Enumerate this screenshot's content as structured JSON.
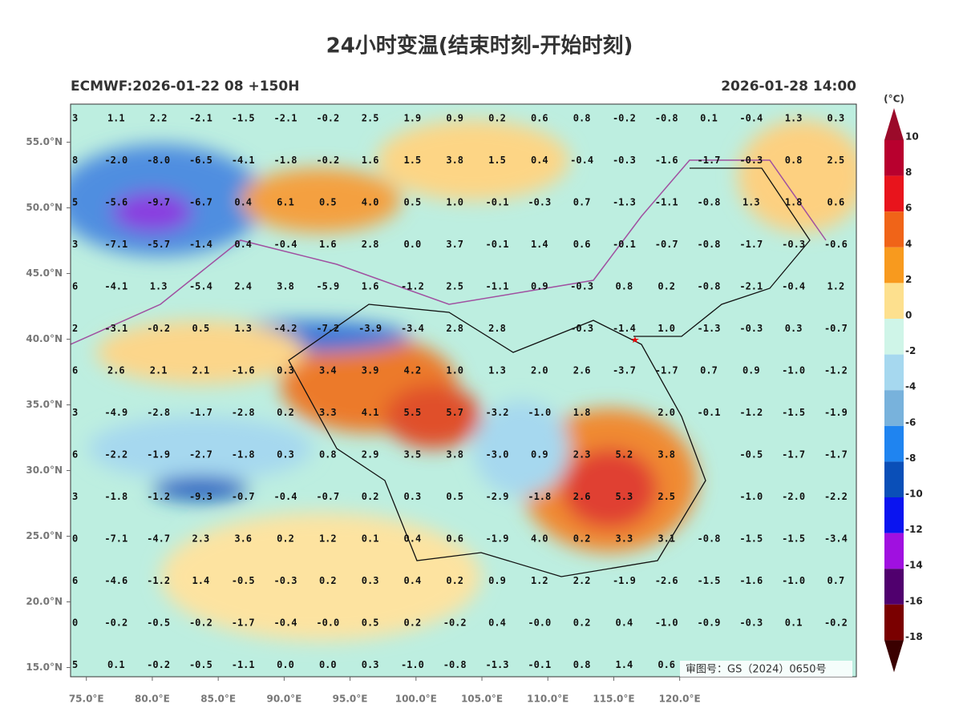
{
  "title": "24小时变温(结束时刻-开始时刻)",
  "subtitle_left": "ECMWF:2026-01-22 08 +150H",
  "subtitle_right": "2026-01-28 14:00",
  "map": {
    "lon_lim": [
      73.8,
      133.4
    ],
    "lat_lim": [
      14.3,
      57.9
    ],
    "lat_ticks": [
      {
        "value": 55,
        "label": "55.0°N"
      },
      {
        "value": 50,
        "label": "50.0°N"
      },
      {
        "value": 45,
        "label": "45.0°N"
      },
      {
        "value": 40,
        "label": "40.0°N"
      },
      {
        "value": 35,
        "label": "35.0°N"
      },
      {
        "value": 30,
        "label": "30.0°N"
      },
      {
        "value": 25,
        "label": "25.0°N"
      },
      {
        "value": 20,
        "label": "20.0°N"
      },
      {
        "value": 15,
        "label": "15.0°N"
      }
    ],
    "lon_ticks": [
      {
        "value": 75,
        "label": "75.0°E"
      },
      {
        "value": 80,
        "label": "80.0°E"
      },
      {
        "value": 85,
        "label": "85.0°E"
      },
      {
        "value": 90,
        "label": "90.0°E"
      },
      {
        "value": 95,
        "label": "95.0°E"
      },
      {
        "value": 100,
        "label": "100.0°E"
      },
      {
        "value": 105,
        "label": "105.0°E"
      },
      {
        "value": 110,
        "label": "110.0°E"
      },
      {
        "value": 115,
        "label": "115.0°E"
      },
      {
        "value": 120,
        "label": "120.0°E"
      }
    ],
    "grid_values": [
      [
        "3",
        "1.1",
        "2.2",
        "-2.1",
        "-1.5",
        "-2.1",
        "-0.2",
        "2.5",
        "1.9",
        "0.9",
        "0.2",
        "0.6",
        "0.8",
        "-0.2",
        "-0.8",
        "0.1",
        "-0.4",
        "1.3",
        "0.3"
      ],
      [
        "8",
        "-2.0",
        "-8.0",
        "-6.5",
        "-4.1",
        "-1.8",
        "-0.2",
        "1.6",
        "1.5",
        "3.8",
        "1.5",
        "0.4",
        "-0.4",
        "-0.3",
        "-1.6",
        "-1.7",
        "-0.3",
        "0.8",
        "2.5"
      ],
      [
        "5",
        "-5.6",
        "-9.7",
        "-6.7",
        "0.4",
        "6.1",
        "0.5",
        "4.0",
        "0.5",
        "1.0",
        "-0.1",
        "-0.3",
        "0.7",
        "-1.3",
        "-1.1",
        "-0.8",
        "1.3",
        "1.8",
        "0.6"
      ],
      [
        "3",
        "-7.1",
        "-5.7",
        "-1.4",
        "0.4",
        "-0.4",
        "1.6",
        "2.8",
        "0.0",
        "3.7",
        "-0.1",
        "1.4",
        "0.6",
        "-0.1",
        "-0.7",
        "-0.8",
        "-1.7",
        "-0.3",
        "-0.6"
      ],
      [
        "6",
        "-4.1",
        "1.3",
        "-5.4",
        "2.4",
        "3.8",
        "-5.9",
        "1.6",
        "-1.2",
        "2.5",
        "-1.1",
        "0.9",
        "-0.3",
        "0.8",
        "0.2",
        "-0.8",
        "-2.1",
        "-0.4",
        "1.2"
      ],
      [
        "2",
        "-3.1",
        "-0.2",
        "0.5",
        "1.3",
        "-4.2",
        "-7.2",
        "-3.9",
        "-3.4",
        "2.8",
        "2.8",
        null,
        "-0.3",
        "-1.4",
        "1.0",
        "-1.3",
        "-0.3",
        "0.3",
        "-0.7"
      ],
      [
        "6",
        "2.6",
        "2.1",
        "2.1",
        "-1.6",
        "0.3",
        "3.4",
        "3.9",
        "4.2",
        "1.0",
        "1.3",
        "2.0",
        "2.6",
        "-3.7",
        "-1.7",
        "0.7",
        "0.9",
        "-1.0",
        "-1.2"
      ],
      [
        "3",
        "-4.9",
        "-2.8",
        "-1.7",
        "-2.8",
        "0.2",
        "3.3",
        "4.1",
        "5.5",
        "5.7",
        "-3.2",
        "-1.0",
        "1.8",
        null,
        "2.0",
        "-0.1",
        "-1.2",
        "-1.5",
        "-1.9"
      ],
      [
        "6",
        "-2.2",
        "-1.9",
        "-2.7",
        "-1.8",
        "0.3",
        "0.8",
        "2.9",
        "3.5",
        "3.8",
        "-3.0",
        "0.9",
        "2.3",
        "5.2",
        "3.8",
        null,
        "-0.5",
        "-1.7",
        "-1.7"
      ],
      [
        "3",
        "-1.8",
        "-1.2",
        "-9.3",
        "-0.7",
        "-0.4",
        "-0.7",
        "0.2",
        "0.3",
        "0.5",
        "-2.9",
        "-1.8",
        "2.6",
        "5.3",
        "2.5",
        null,
        "-1.0",
        "-2.0",
        "-2.2"
      ],
      [
        "0",
        "-7.1",
        "-4.7",
        "2.3",
        "3.6",
        "0.2",
        "1.2",
        "0.1",
        "0.4",
        "0.6",
        "-1.9",
        "4.0",
        "0.2",
        "3.3",
        "3.1",
        "-0.8",
        "-1.5",
        "-1.5",
        "-3.4"
      ],
      [
        "6",
        "-4.6",
        "-1.2",
        "1.4",
        "-0.5",
        "-0.3",
        "0.2",
        "0.3",
        "0.4",
        "0.2",
        "0.9",
        "1.2",
        "2.2",
        "-1.9",
        "-2.6",
        "-1.5",
        "-1.6",
        "-1.0",
        "0.7"
      ],
      [
        "0",
        "-0.2",
        "-0.5",
        "-0.2",
        "-1.7",
        "-0.4",
        "-0.0",
        "0.5",
        "0.2",
        "-0.2",
        "0.4",
        "-0.0",
        "0.2",
        "0.4",
        "-1.0",
        "-0.9",
        "-0.3",
        "0.1",
        "-0.2"
      ],
      [
        "5",
        "0.1",
        "-0.2",
        "-0.5",
        "-1.1",
        "0.0",
        "0.0",
        "0.3",
        "-1.0",
        "-0.8",
        "-1.3",
        "-0.1",
        "0.8",
        "1.4",
        "0.6",
        null,
        null,
        null,
        null
      ]
    ],
    "approval_note": "审图号：GS（2024）0650号"
  },
  "colorbar": {
    "unit": "(°C)",
    "ticks": [
      10,
      8,
      6,
      4,
      2,
      0,
      -2,
      -4,
      -6,
      -8,
      -10,
      -12,
      -14,
      -16,
      -18
    ],
    "colors": [
      "#9b0a2a",
      "#b8002e",
      "#e8141c",
      "#f06418",
      "#f89a1e",
      "#fde08e",
      "#cff5e8",
      "#a6d8ef",
      "#78b2dc",
      "#1f84f0",
      "#0a4fb8",
      "#0a14f0",
      "#a010e0",
      "#50006e",
      "#7a0000",
      "#3a0000"
    ]
  }
}
